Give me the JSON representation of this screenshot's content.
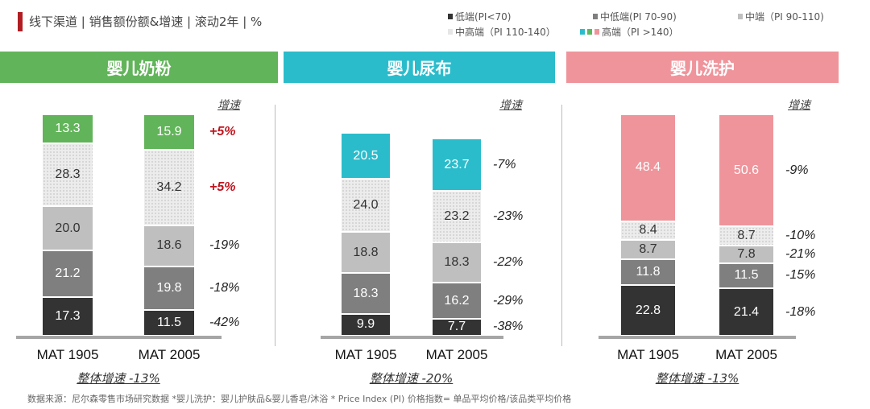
{
  "header": {
    "title": "线下渠道 | 销售额份额&增速 | 滚动2年 | %"
  },
  "legend": [
    {
      "label": "低端(PI<70)",
      "color": "#333333"
    },
    {
      "label": "中低端(PI 70-90)",
      "color": "#7f7f7f"
    },
    {
      "label": "中端（PI 90-110)",
      "color": "#bfbfbf"
    },
    {
      "label": "中高端（PI 110-140）",
      "color": "#e6e6e6"
    },
    {
      "label": "高端（PI >140）",
      "colors": [
        "#2bbccc",
        "#5cb85c",
        "#ef949b"
      ]
    }
  ],
  "chart_data": [
    {
      "type": "bar",
      "stacked": true,
      "title": "婴儿奶粉",
      "accent": "#62b45a",
      "growth_header": "增速",
      "categories": [
        "MAT 1905",
        "MAT 2005"
      ],
      "tiers": [
        "低端",
        "中低端",
        "中端",
        "中高端",
        "高端"
      ],
      "series": [
        [
          17.3,
          21.2,
          20.0,
          28.3,
          13.3
        ],
        [
          11.5,
          19.8,
          18.6,
          34.2,
          15.9
        ]
      ],
      "growth": [
        "-42%",
        "-18%",
        "-19%",
        "+5%",
        "+5%"
      ],
      "overall": "整体增速 -13%"
    },
    {
      "type": "bar",
      "stacked": true,
      "title": "婴儿尿布",
      "accent": "#2bbccc",
      "growth_header": "增速",
      "categories": [
        "MAT 1905",
        "MAT 2005"
      ],
      "tiers": [
        "低端",
        "中低端",
        "中端",
        "中高端",
        "高端"
      ],
      "series": [
        [
          9.9,
          18.3,
          18.8,
          24.0,
          20.5
        ],
        [
          7.7,
          16.2,
          18.3,
          23.2,
          23.7
        ]
      ],
      "growth": [
        "-38%",
        "-29%",
        "-22%",
        "-23%",
        "-7%"
      ],
      "overall": "整体增速 -20%"
    },
    {
      "type": "bar",
      "stacked": true,
      "title": "婴儿洗护",
      "accent": "#ef949b",
      "growth_header": "增速",
      "categories": [
        "MAT 1905",
        "MAT 2005"
      ],
      "tiers": [
        "低端",
        "中低端",
        "中端",
        "中高端",
        "高端"
      ],
      "series": [
        [
          22.8,
          11.8,
          8.7,
          8.4,
          48.4
        ],
        [
          21.4,
          11.5,
          7.8,
          8.7,
          50.6
        ]
      ],
      "growth": [
        "-18%",
        "-15%",
        "-21%",
        "-10%",
        "-9%"
      ],
      "overall": "整体增速 -13%"
    }
  ],
  "footer": "数据来源：尼尔森零售市场研究数据  *婴儿洗护：婴儿护肤品&婴儿香皂/沐浴 * Price Index (PI) 价格指数= 单品平均价格/该品类平均价格"
}
